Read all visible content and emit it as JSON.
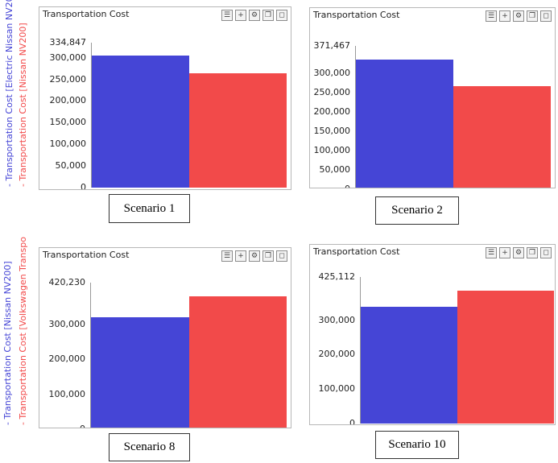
{
  "chart_data": [
    {
      "type": "bar",
      "title": "Transportation Cost",
      "ymax_label": "334,847",
      "yticks": [
        "300,000",
        "250,000",
        "200,000",
        "150,000",
        "100,000",
        "50,000",
        "0"
      ],
      "tick_values": [
        300000,
        250000,
        200000,
        150000,
        100000,
        50000,
        0
      ],
      "ylim": [
        0,
        334847
      ],
      "series": [
        {
          "name": "Transportation Cost [Electric Nissan NV20",
          "value": 305000,
          "color": "#4545d6"
        },
        {
          "name": "Transportation Cost [Nissan NV200]",
          "value": 264000,
          "color": "#f24a4a"
        }
      ],
      "scenario_label": "Scenario 1"
    },
    {
      "type": "bar",
      "title": "Transportation Cost",
      "ymax_label": "371,467",
      "yticks": [
        "300,000",
        "250,000",
        "200,000",
        "150,000",
        "100,000",
        "50,000",
        "0"
      ],
      "tick_values": [
        300000,
        250000,
        200000,
        150000,
        100000,
        50000,
        0
      ],
      "ylim": [
        0,
        371467
      ],
      "series": [
        {
          "name": "",
          "value": 336000,
          "color": "#4545d6"
        },
        {
          "name": "",
          "value": 268000,
          "color": "#f24a4a"
        }
      ],
      "scenario_label": "Scenario 2"
    },
    {
      "type": "bar",
      "title": "Transportation Cost",
      "ymax_label": "420,230",
      "yticks": [
        "300,000",
        "200,000",
        "100,000",
        "0"
      ],
      "tick_values": [
        300000,
        200000,
        100000,
        0
      ],
      "ylim": [
        0,
        420230
      ],
      "series": [
        {
          "name": "Transportation Cost [Nissan NV200]",
          "value": 320000,
          "color": "#4545d6"
        },
        {
          "name": "Transportation Cost [Volkswagen Transpo",
          "value": 382000,
          "color": "#f24a4a"
        }
      ],
      "scenario_label": "Scenario 8"
    },
    {
      "type": "bar",
      "title": "Transportation Cost",
      "ymax_label": "425,112",
      "yticks": [
        "300,000",
        "200,000",
        "100,000",
        "0"
      ],
      "tick_values": [
        300000,
        200000,
        100000,
        0
      ],
      "ylim": [
        0,
        425112
      ],
      "series": [
        {
          "name": "",
          "value": 338000,
          "color": "#4545d6"
        },
        {
          "name": "",
          "value": 385000,
          "color": "#f24a4a"
        }
      ],
      "scenario_label": "Scenario 10"
    }
  ],
  "toolbar_icons": [
    "list-icon",
    "plus-icon",
    "gear-icon",
    "copy-icon",
    "expand-icon"
  ],
  "legend_markers": [
    "-",
    "-"
  ],
  "colors": {
    "series_1": "#4545d6",
    "series_2": "#f24a4a",
    "border": "#b7b7b7"
  }
}
